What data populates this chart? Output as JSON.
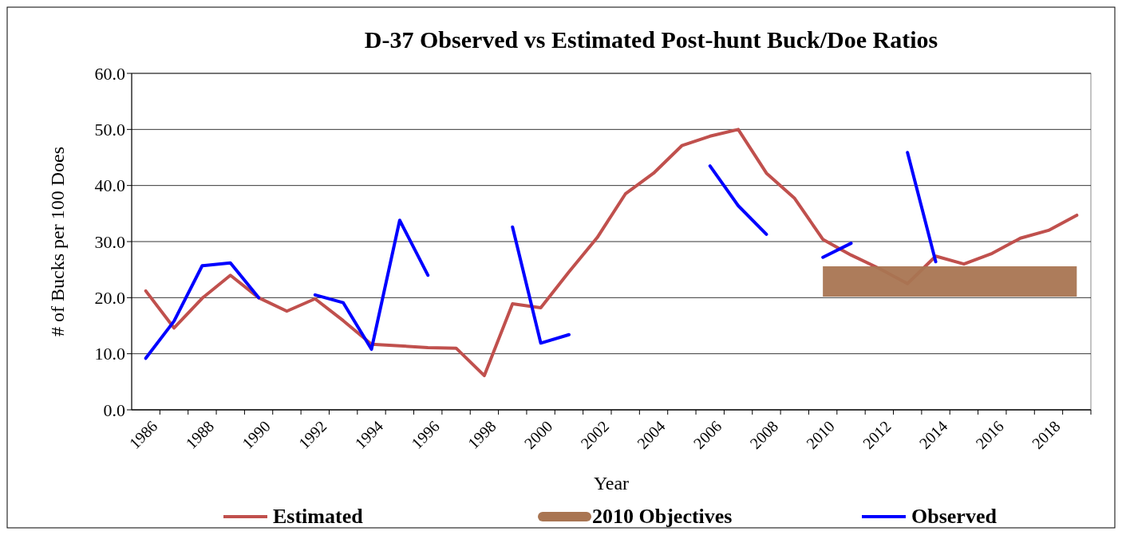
{
  "chart_data": {
    "type": "line",
    "title": "D-37 Observed vs Estimated Post-hunt Buck/Doe Ratios",
    "xlabel": "Year",
    "ylabel": "# of Bucks per 100 Does",
    "categories": [
      "1986",
      null,
      "1988",
      null,
      "1990",
      null,
      "1992",
      null,
      "1994",
      null,
      "1996",
      null,
      "1998",
      null,
      "2000",
      null,
      "2002",
      null,
      "2004",
      null,
      "2006",
      null,
      "2008",
      null,
      "2010",
      null,
      "2012",
      null,
      "2014",
      null,
      "2016",
      null,
      "2018",
      null
    ],
    "series": [
      {
        "name": "Estimated",
        "color": "#c0504d",
        "values": [
          21.2,
          14.6,
          19.9,
          24.0,
          20.0,
          17.6,
          19.8,
          15.9,
          11.7,
          11.4,
          11.1,
          11.0,
          6.1,
          18.9,
          18.2,
          24.6,
          30.7,
          38.5,
          42.2,
          47.1,
          48.8,
          50.0,
          42.2,
          37.7,
          30.4,
          27.6,
          25.2,
          22.5,
          27.4,
          26.0,
          27.9,
          30.6,
          32.0,
          34.7
        ]
      },
      {
        "name": "2010 Objectives",
        "color": "#a97552",
        "values": [
          null,
          null,
          null,
          null,
          null,
          null,
          null,
          null,
          null,
          null,
          null,
          null,
          null,
          null,
          null,
          null,
          null,
          null,
          null,
          null,
          null,
          null,
          null,
          null,
          22.9,
          22.9,
          22.9,
          22.9,
          22.9,
          22.9,
          22.9,
          22.9,
          22.9,
          22.9
        ]
      },
      {
        "name": "Observed",
        "color": "#0000ff",
        "values": [
          9.2,
          15.8,
          25.7,
          26.2,
          20.0,
          null,
          20.5,
          19.1,
          10.8,
          33.8,
          24.0,
          null,
          null,
          32.6,
          11.9,
          13.4,
          null,
          null,
          null,
          null,
          43.5,
          36.4,
          31.3,
          null,
          27.2,
          29.7,
          null,
          45.9,
          26.4,
          null,
          null,
          null,
          null,
          null
        ]
      }
    ],
    "ylim": [
      0,
      60
    ],
    "yticks": [
      {
        "value": 0,
        "label": "0.0"
      },
      {
        "value": 10,
        "label": "10.0"
      },
      {
        "value": 20,
        "label": "20.0"
      },
      {
        "value": 30,
        "label": "30.0"
      },
      {
        "value": 40,
        "label": "40.0"
      },
      {
        "value": 50,
        "label": "50.0"
      },
      {
        "value": 60,
        "label": "60.0"
      }
    ],
    "grid": "y",
    "legend": "bottom"
  }
}
